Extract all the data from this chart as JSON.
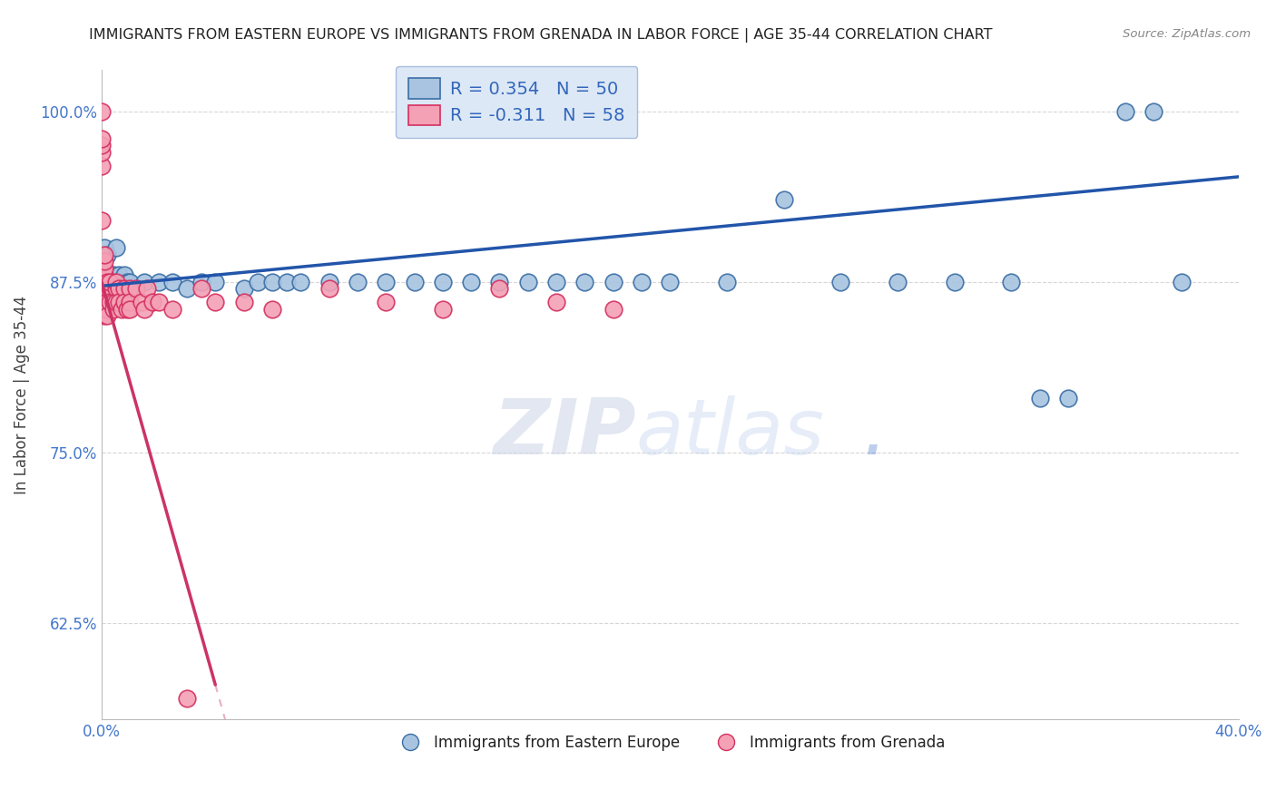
{
  "title": "IMMIGRANTS FROM EASTERN EUROPE VS IMMIGRANTS FROM GRENADA IN LABOR FORCE | AGE 35-44 CORRELATION CHART",
  "source": "Source: ZipAtlas.com",
  "xlabel": "",
  "ylabel": "In Labor Force | Age 35-44",
  "xlim": [
    0.0,
    0.4
  ],
  "ylim": [
    0.555,
    1.03
  ],
  "yticks": [
    0.625,
    0.75,
    0.875,
    1.0
  ],
  "ytick_labels": [
    "62.5%",
    "75.0%",
    "87.5%",
    "100.0%"
  ],
  "xticks": [
    0.0,
    0.05,
    0.1,
    0.15,
    0.2,
    0.25,
    0.3,
    0.35,
    0.4
  ],
  "xtick_labels": [
    "0.0%",
    "",
    "",
    "",
    "",
    "",
    "",
    "",
    "40.0%"
  ],
  "blue_R": 0.354,
  "blue_N": 50,
  "pink_R": -0.311,
  "pink_N": 58,
  "blue_color": "#a8c4e0",
  "pink_color": "#f4a0b5",
  "blue_edge_color": "#3a6ea5",
  "pink_edge_color": "#d43060",
  "blue_line_color": "#2255aa",
  "pink_line_color": "#cc3366",
  "pink_dash_color": "#e8b0c0",
  "legend_label_blue": "Immigrants from Eastern Europe",
  "legend_label_pink": "Immigrants from Grenada",
  "blue_scatter_x": [
    0.001,
    0.001,
    0.002,
    0.002,
    0.003,
    0.003,
    0.004,
    0.005,
    0.005,
    0.006,
    0.006,
    0.007,
    0.008,
    0.009,
    0.01,
    0.015,
    0.02,
    0.025,
    0.03,
    0.035,
    0.04,
    0.05,
    0.055,
    0.06,
    0.065,
    0.07,
    0.08,
    0.09,
    0.1,
    0.11,
    0.12,
    0.13,
    0.14,
    0.15,
    0.16,
    0.17,
    0.18,
    0.19,
    0.2,
    0.22,
    0.24,
    0.26,
    0.28,
    0.3,
    0.32,
    0.33,
    0.34,
    0.36,
    0.37,
    0.38
  ],
  "blue_scatter_y": [
    0.875,
    0.9,
    0.875,
    0.895,
    0.88,
    0.875,
    0.88,
    0.875,
    0.9,
    0.875,
    0.88,
    0.875,
    0.88,
    0.875,
    0.875,
    0.875,
    0.875,
    0.875,
    0.87,
    0.875,
    0.875,
    0.87,
    0.875,
    0.875,
    0.875,
    0.875,
    0.875,
    0.875,
    0.875,
    0.875,
    0.875,
    0.875,
    0.875,
    0.875,
    0.875,
    0.875,
    0.875,
    0.875,
    0.875,
    0.875,
    0.935,
    0.875,
    0.875,
    0.875,
    0.875,
    0.79,
    0.79,
    1.0,
    1.0,
    0.875
  ],
  "pink_scatter_x": [
    0.0,
    0.0,
    0.0,
    0.0,
    0.0,
    0.0,
    0.001,
    0.001,
    0.001,
    0.001,
    0.001,
    0.001,
    0.001,
    0.001,
    0.001,
    0.001,
    0.001,
    0.001,
    0.002,
    0.002,
    0.002,
    0.002,
    0.002,
    0.003,
    0.003,
    0.003,
    0.004,
    0.004,
    0.005,
    0.005,
    0.005,
    0.006,
    0.006,
    0.007,
    0.008,
    0.008,
    0.009,
    0.01,
    0.01,
    0.01,
    0.012,
    0.014,
    0.015,
    0.016,
    0.018,
    0.02,
    0.025,
    0.03,
    0.035,
    0.04,
    0.05,
    0.06,
    0.08,
    0.1,
    0.12,
    0.14,
    0.16,
    0.18
  ],
  "pink_scatter_y": [
    0.92,
    0.96,
    0.97,
    0.975,
    0.98,
    1.0,
    0.875,
    0.875,
    0.88,
    0.88,
    0.885,
    0.89,
    0.895,
    0.87,
    0.865,
    0.86,
    0.855,
    0.85,
    0.87,
    0.875,
    0.86,
    0.855,
    0.85,
    0.87,
    0.875,
    0.86,
    0.86,
    0.855,
    0.87,
    0.875,
    0.86,
    0.87,
    0.86,
    0.855,
    0.87,
    0.86,
    0.855,
    0.87,
    0.86,
    0.855,
    0.87,
    0.86,
    0.855,
    0.87,
    0.86,
    0.86,
    0.855,
    0.57,
    0.87,
    0.86,
    0.86,
    0.855,
    0.87,
    0.86,
    0.855,
    0.87,
    0.86,
    0.855
  ],
  "watermark_zip": "ZIP",
  "watermark_atlas": "atlas",
  "watermark_dot": ".",
  "background_color": "#ffffff",
  "grid_color": "#cccccc",
  "title_color": "#222222",
  "axis_label_color": "#444444",
  "tick_label_color": "#4477cc",
  "legend_box_facecolor": "#dce8f5",
  "legend_value_color": "#3366bb",
  "legend_text_dark": "#222222"
}
